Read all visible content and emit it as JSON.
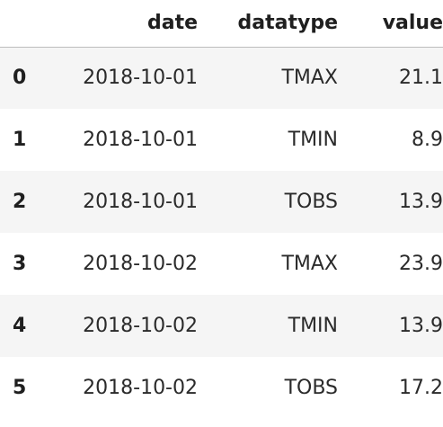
{
  "table": {
    "index_header": "",
    "columns": [
      "date",
      "datatype",
      "value"
    ],
    "rows": [
      {
        "index": "0",
        "date": "2018-10-01",
        "datatype": "TMAX",
        "value": "21.1"
      },
      {
        "index": "1",
        "date": "2018-10-01",
        "datatype": "TMIN",
        "value": "8.9"
      },
      {
        "index": "2",
        "date": "2018-10-01",
        "datatype": "TOBS",
        "value": "13.9"
      },
      {
        "index": "3",
        "date": "2018-10-02",
        "datatype": "TMAX",
        "value": "23.9"
      },
      {
        "index": "4",
        "date": "2018-10-02",
        "datatype": "TMIN",
        "value": "13.9"
      },
      {
        "index": "5",
        "date": "2018-10-02",
        "datatype": "TOBS",
        "value": "17.2"
      }
    ]
  }
}
